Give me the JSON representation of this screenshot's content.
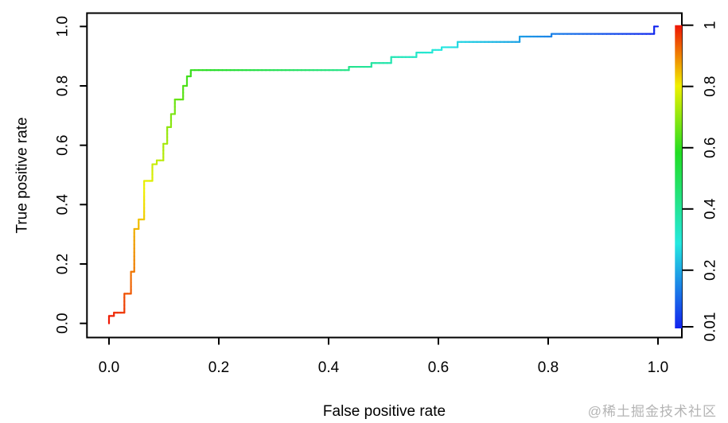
{
  "watermark": {
    "text": "@稀土掘金技术社区"
  },
  "chart_data": {
    "type": "line",
    "subtype": "roc_step_curve_colorized",
    "title": "",
    "xlabel": "False positive rate",
    "ylabel": "True positive rate",
    "grid": false,
    "xlim": [
      -0.04,
      1.04
    ],
    "ylim": [
      -0.04,
      1.04
    ],
    "x_tick_labels": [
      "0.0",
      "0.2",
      "0.4",
      "0.6",
      "0.8",
      "1.0"
    ],
    "x_tick_values": [
      0,
      0.2,
      0.4,
      0.6,
      0.8,
      1.0
    ],
    "y_tick_labels": [
      "0.0",
      "0.2",
      "0.4",
      "0.6",
      "0.8",
      "1.0"
    ],
    "y_tick_values": [
      0,
      0.2,
      0.4,
      0.6,
      0.8,
      1.0
    ],
    "roc_points": [
      [
        0.0,
        0.0
      ],
      [
        0.0,
        0.025
      ],
      [
        0.009,
        0.025
      ],
      [
        0.009,
        0.036
      ],
      [
        0.028,
        0.036
      ],
      [
        0.028,
        0.1
      ],
      [
        0.04,
        0.1
      ],
      [
        0.04,
        0.174
      ],
      [
        0.046,
        0.174
      ],
      [
        0.046,
        0.318
      ],
      [
        0.054,
        0.318
      ],
      [
        0.054,
        0.35
      ],
      [
        0.064,
        0.35
      ],
      [
        0.064,
        0.48
      ],
      [
        0.079,
        0.48
      ],
      [
        0.079,
        0.536
      ],
      [
        0.087,
        0.536
      ],
      [
        0.087,
        0.549
      ],
      [
        0.099,
        0.549
      ],
      [
        0.099,
        0.605
      ],
      [
        0.106,
        0.605
      ],
      [
        0.106,
        0.661
      ],
      [
        0.113,
        0.661
      ],
      [
        0.113,
        0.705
      ],
      [
        0.12,
        0.705
      ],
      [
        0.12,
        0.754
      ],
      [
        0.135,
        0.754
      ],
      [
        0.135,
        0.8
      ],
      [
        0.142,
        0.8
      ],
      [
        0.142,
        0.832
      ],
      [
        0.149,
        0.832
      ],
      [
        0.149,
        0.853
      ],
      [
        0.437,
        0.853
      ],
      [
        0.437,
        0.864
      ],
      [
        0.478,
        0.864
      ],
      [
        0.478,
        0.877
      ],
      [
        0.514,
        0.877
      ],
      [
        0.514,
        0.897
      ],
      [
        0.56,
        0.897
      ],
      [
        0.56,
        0.912
      ],
      [
        0.589,
        0.912
      ],
      [
        0.589,
        0.921
      ],
      [
        0.606,
        0.921
      ],
      [
        0.606,
        0.93
      ],
      [
        0.635,
        0.93
      ],
      [
        0.635,
        0.948
      ],
      [
        0.748,
        0.948
      ],
      [
        0.748,
        0.966
      ],
      [
        0.806,
        0.966
      ],
      [
        0.806,
        0.975
      ],
      [
        0.993,
        0.975
      ],
      [
        0.993,
        1.0
      ],
      [
        1.0,
        1.0
      ]
    ],
    "colorbar": {
      "tick_labels": [
        "1",
        "0.8",
        "0.6",
        "0.4",
        "0.2",
        "0.01"
      ],
      "tick_values": [
        1,
        0.8,
        0.6,
        0.4,
        0.2,
        0.01
      ],
      "value_range": [
        0.01,
        1
      ],
      "orientation": "vertical-right",
      "gradient_stops": [
        {
          "offset": 0.0,
          "color": "#ee1505"
        },
        {
          "offset": 0.2,
          "color": "#f0f000"
        },
        {
          "offset": 0.42,
          "color": "#22dd22"
        },
        {
          "offset": 0.72,
          "color": "#25e8e0"
        },
        {
          "offset": 1.0,
          "color": "#1222ee"
        }
      ]
    }
  }
}
